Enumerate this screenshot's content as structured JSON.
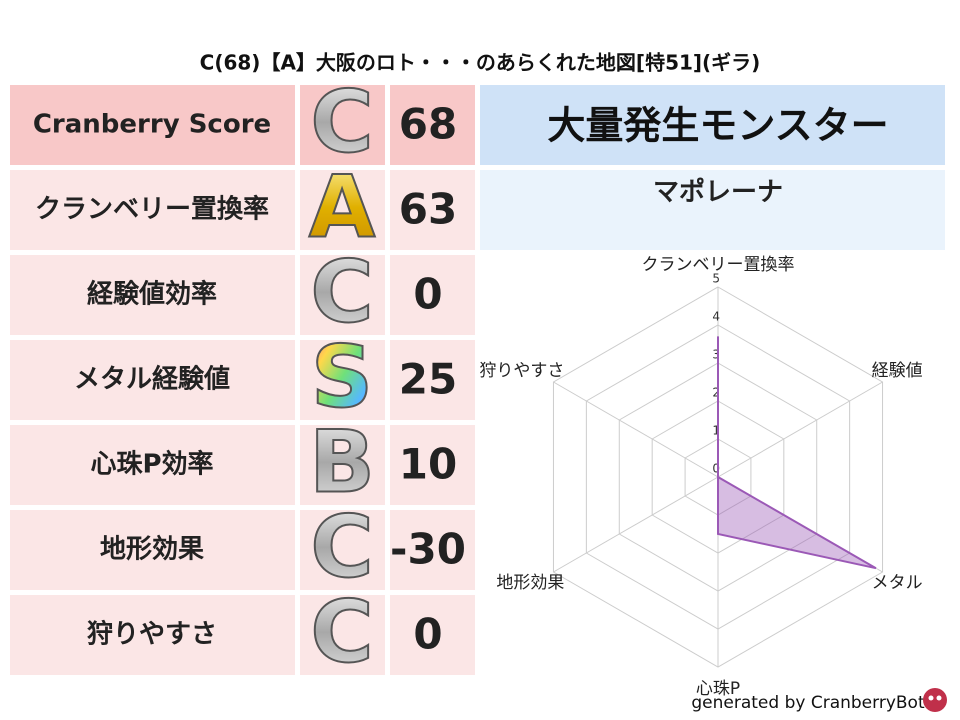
{
  "header": {
    "title": "C(68)【A】大阪のロト・・・のあらくれた地図[特51](ギラ)"
  },
  "table": {
    "rows": [
      [
        "Cranberry Score",
        "C",
        "68"
      ],
      [
        "クランベリー置換率",
        "A",
        "63"
      ],
      [
        "経験値効率",
        "C",
        "0"
      ],
      [
        "メタル経験値",
        "S",
        "25"
      ],
      [
        "心珠P効率",
        "B",
        "10"
      ],
      [
        "地形効果",
        "C",
        "-30"
      ],
      [
        "狩りやすさ",
        "C",
        "0"
      ]
    ]
  },
  "monster": {
    "title": "大量発生モンスター",
    "name": "マポレーナ"
  },
  "radar": {
    "type": "radar",
    "categories": [
      "クランベリー置換率",
      "経験値",
      "メタル",
      "心珠P",
      "地形効果",
      "狩りやすさ"
    ],
    "values": [
      3.7,
      0,
      4.8,
      1.5,
      0,
      0
    ],
    "color": "#9b59b6",
    "rlim": [
      0,
      5
    ],
    "rticks": [
      0,
      1,
      2,
      3,
      4,
      5
    ]
  },
  "footer": {
    "text": "generated by CranberryBot"
  }
}
